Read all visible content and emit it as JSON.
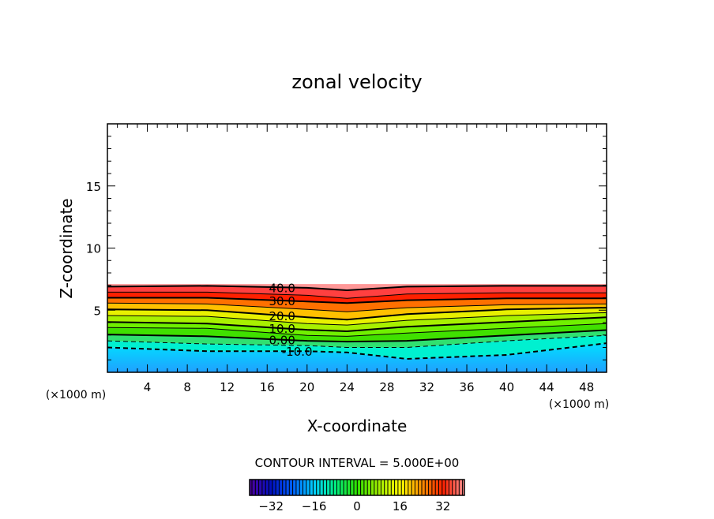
{
  "chart_data": {
    "type": "contour",
    "title": "zonal velocity",
    "xlabel": "X-coordinate",
    "ylabel": "Z-coordinate",
    "x_unit_label": "(×1000 m)",
    "y_unit_label": "(×1000 m)",
    "xlim": [
      0,
      50
    ],
    "ylim": [
      0,
      20
    ],
    "x_ticks": [
      4,
      8,
      12,
      16,
      20,
      24,
      28,
      32,
      36,
      40,
      44,
      48
    ],
    "y_ticks": [
      5,
      10,
      15
    ],
    "field_top_z": 7.1,
    "contour_interval_label": "CONTOUR INTERVAL = 5.000E+00",
    "sample_x": [
      0,
      10,
      20,
      24,
      30,
      40,
      50
    ],
    "contours": [
      {
        "level": -10,
        "label": "-10.0",
        "z": [
          2.0,
          1.7,
          1.7,
          1.6,
          1.08,
          1.4,
          2.34
        ]
      },
      {
        "level": -5,
        "z": [
          2.53,
          2.28,
          2.15,
          2.0,
          2.0,
          2.53,
          2.97
        ]
      },
      {
        "level": 0,
        "label": "0.00",
        "z": [
          3.04,
          2.9,
          2.53,
          2.47,
          2.53,
          2.97,
          3.4
        ]
      },
      {
        "level": 5,
        "z": [
          3.6,
          3.54,
          2.97,
          2.9,
          3.16,
          3.54,
          3.92
        ]
      },
      {
        "level": 10,
        "label": "10.0",
        "z": [
          4.05,
          3.92,
          3.42,
          3.3,
          3.67,
          4.05,
          4.43
        ]
      },
      {
        "level": 15,
        "z": [
          4.56,
          4.5,
          3.92,
          3.8,
          4.18,
          4.56,
          4.8
        ]
      },
      {
        "level": 20,
        "label": "20.0",
        "z": [
          5.06,
          5.0,
          4.43,
          4.24,
          4.68,
          5.06,
          5.2
        ]
      },
      {
        "level": 25,
        "z": [
          5.57,
          5.5,
          5.06,
          4.87,
          5.2,
          5.44,
          5.5
        ]
      },
      {
        "level": 30,
        "label": "30.0",
        "z": [
          6.0,
          6.0,
          5.7,
          5.57,
          5.8,
          5.95,
          5.95
        ]
      },
      {
        "level": 35,
        "z": [
          6.45,
          6.45,
          6.2,
          5.95,
          6.3,
          6.4,
          6.4
        ]
      },
      {
        "level": 40,
        "label": "40.0",
        "z": [
          6.9,
          6.96,
          6.8,
          6.6,
          6.9,
          6.96,
          6.96
        ]
      }
    ],
    "colorbar": {
      "range": [
        -40,
        40
      ],
      "ticks": [
        {
          "value": -32,
          "label": "−32"
        },
        {
          "value": -16,
          "label": "−16"
        },
        {
          "value": 0,
          "label": "0"
        },
        {
          "value": 16,
          "label": "16"
        },
        {
          "value": 32,
          "label": "32"
        }
      ],
      "colors": [
        "#5000a0",
        "#0010c0",
        "#0060ff",
        "#00d0ff",
        "#00f080",
        "#30e000",
        "#a0f000",
        "#ffff00",
        "#ff9000",
        "#ff2000",
        "#ff9090"
      ]
    },
    "band_colors": {
      "below": [
        "#20a0ff",
        "#00e0ff"
      ],
      "-10": "#00f0d0",
      "-5": "#30e070",
      "0": "#40e000",
      "5": "#70f000",
      "10": "#a8f000",
      "15": "#e8f000",
      "20": "#ffc000",
      "25": "#ff7000",
      "30": "#ff2000",
      "35": "#ff4040",
      "40": "#ff9898"
    }
  }
}
